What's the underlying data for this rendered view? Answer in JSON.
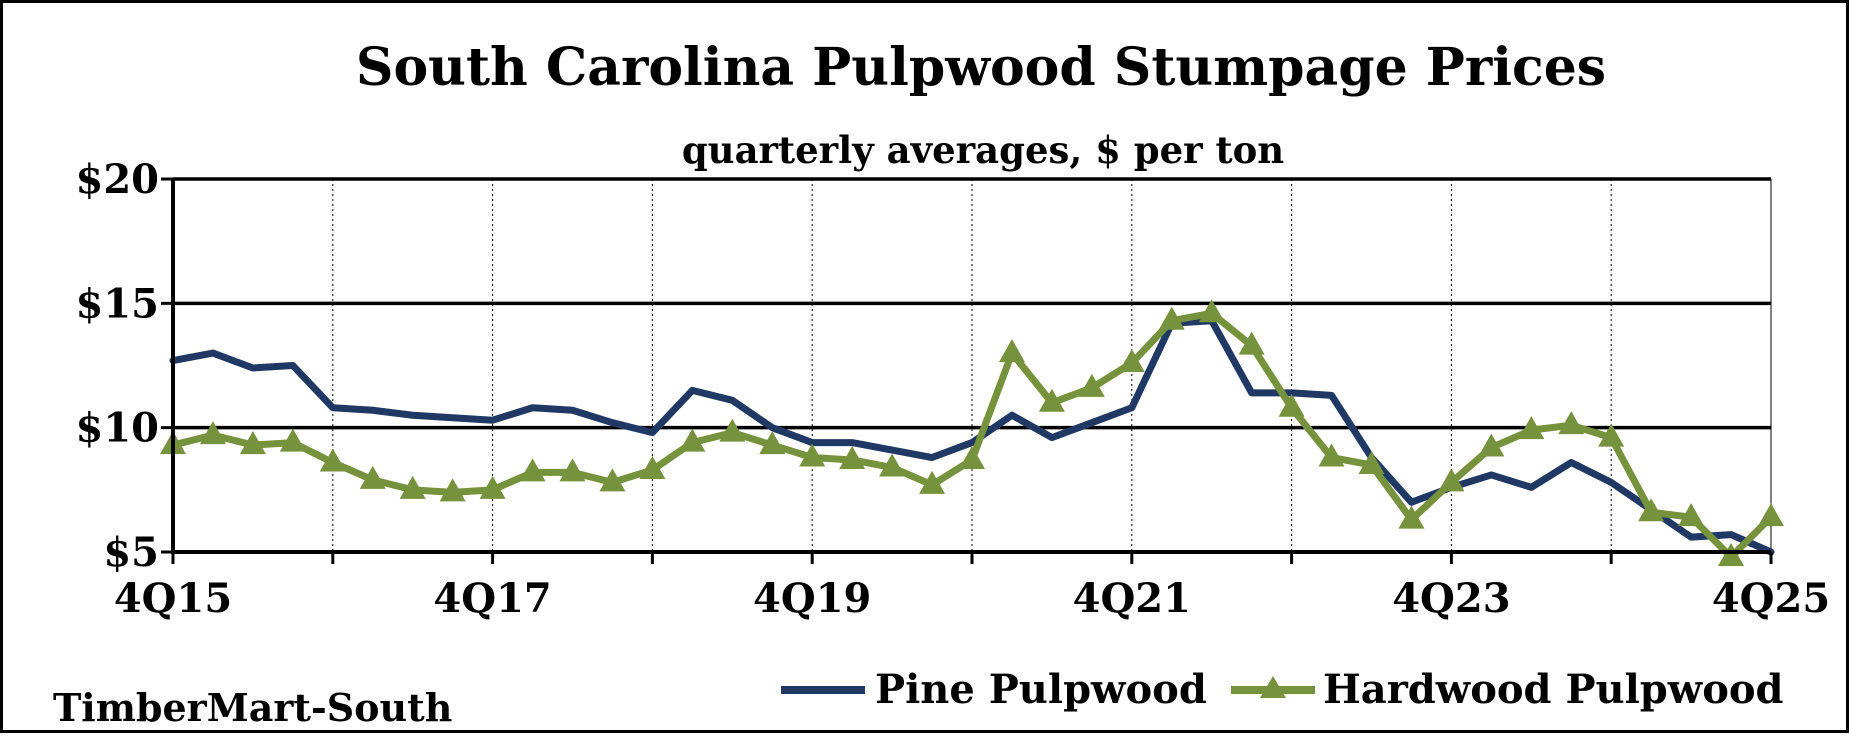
{
  "chart_data": {
    "type": "line",
    "title": "South Carolina Pulpwood Stumpage Prices",
    "subtitle": "quarterly averages, $ per ton",
    "source": "TimberMart-South",
    "ylim": [
      5,
      20
    ],
    "yticks": [
      5,
      10,
      15,
      20
    ],
    "ytick_labels": [
      "$5",
      "$10",
      "$15",
      "$20"
    ],
    "xlabels": [
      {
        "label": "4Q15",
        "index": 0
      },
      {
        "label": "4Q17",
        "index": 8
      },
      {
        "label": "4Q19",
        "index": 16
      },
      {
        "label": "4Q21",
        "index": 24
      },
      {
        "label": "4Q23",
        "index": 32
      },
      {
        "label": "4Q25",
        "index": 40
      }
    ],
    "x_count": 41,
    "grid": "major horizontal solid; vertical dotted every 4 quarters",
    "legend_position": "bottom-right",
    "series": [
      {
        "name": "Pine Pulpwood",
        "color": "#1f3864",
        "marker": "none",
        "values": [
          12.7,
          13.0,
          12.4,
          12.5,
          10.8,
          10.7,
          10.5,
          10.4,
          10.3,
          10.8,
          10.7,
          10.2,
          9.8,
          11.5,
          11.1,
          10.0,
          9.4,
          9.4,
          9.1,
          8.8,
          9.4,
          10.5,
          9.6,
          10.2,
          10.8,
          14.2,
          14.3,
          11.4,
          11.4,
          11.3,
          8.8,
          7.0,
          7.6,
          8.1,
          7.6,
          8.6,
          7.8,
          6.7,
          5.6,
          5.7,
          5.0
        ]
      },
      {
        "name": "Hardwood Pulpwood",
        "color": "#76923c",
        "marker": "triangle",
        "values": [
          9.3,
          9.7,
          9.3,
          9.4,
          8.6,
          7.9,
          7.5,
          7.4,
          7.5,
          8.2,
          8.2,
          7.8,
          8.3,
          9.4,
          9.8,
          9.3,
          8.8,
          8.7,
          8.4,
          7.7,
          8.7,
          13.0,
          11.0,
          11.6,
          12.6,
          14.3,
          14.6,
          13.3,
          10.8,
          8.8,
          8.5,
          6.3,
          7.8,
          9.2,
          9.9,
          10.1,
          9.6,
          6.6,
          6.4,
          4.8,
          6.4
        ]
      }
    ]
  }
}
